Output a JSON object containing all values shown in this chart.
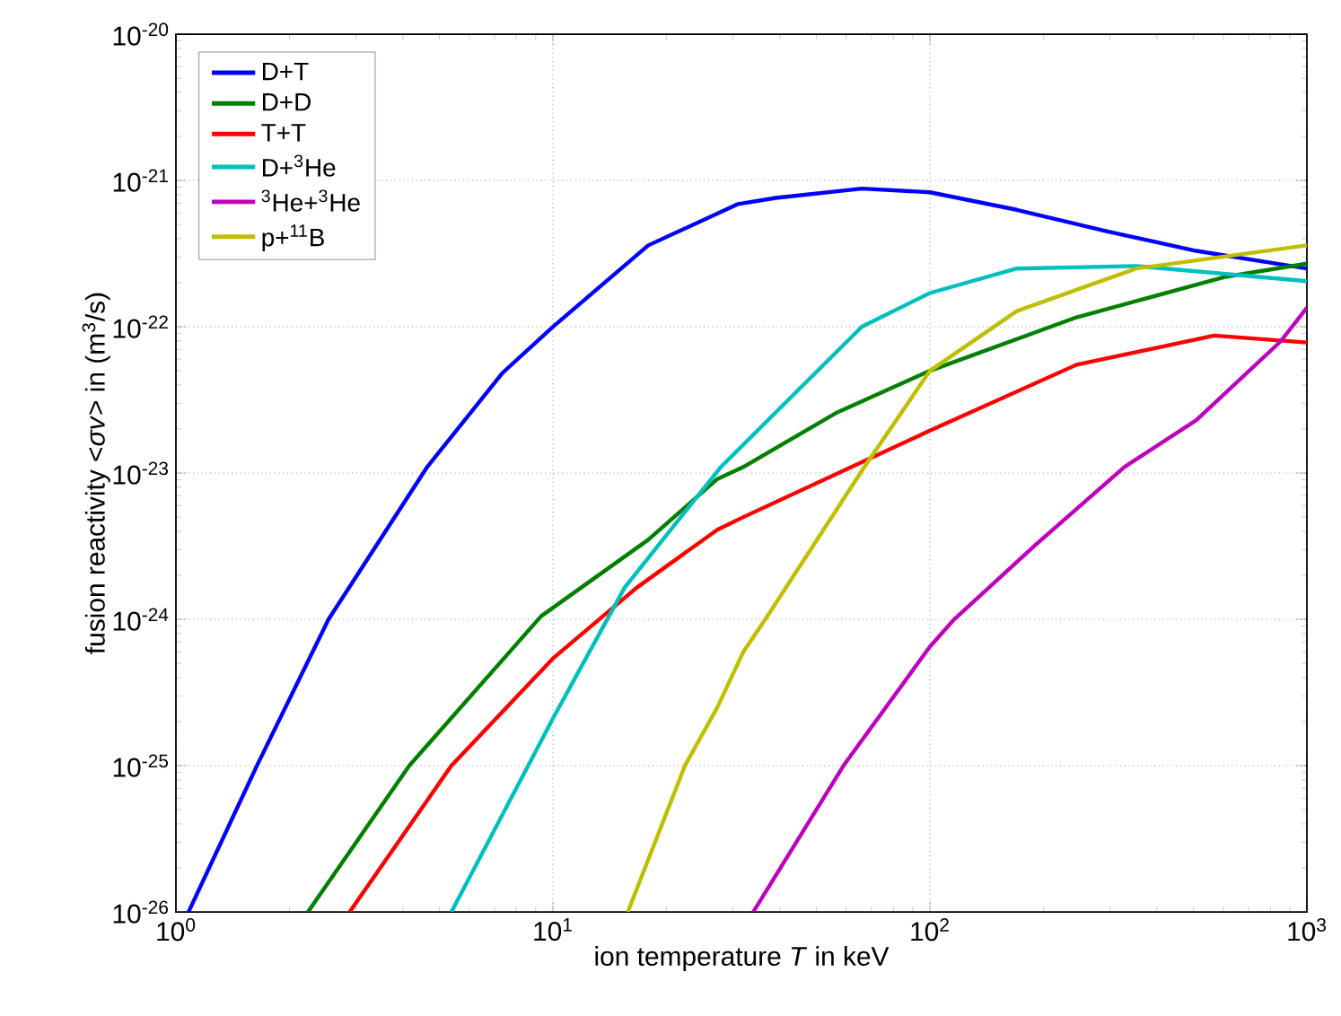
{
  "chart_data": {
    "type": "line",
    "xlabel": "ion temperature *T* in keV",
    "ylabel": "fusion reactivity <*σv*> in (m$^{3}$/s)",
    "log": "xy",
    "grid": true,
    "legend": "top left",
    "line_style": "solid",
    "xlim": [
      1,
      1000
    ],
    "ylim": [
      1e-26,
      1e-20
    ],
    "xticks": [
      {
        "value": 1,
        "label": "10$^{0}$"
      },
      {
        "value": 10,
        "label": "10$^{1}$"
      },
      {
        "value": 100,
        "label": "10$^{2}$"
      },
      {
        "value": 1000,
        "label": "10$^{3}$"
      }
    ],
    "yticks": [
      {
        "value": 1e-26,
        "label": "10$^{-26}$"
      },
      {
        "value": 1e-25,
        "label": "10$^{-25}$"
      },
      {
        "value": 1e-24,
        "label": "10$^{-24}$"
      },
      {
        "value": 1e-23,
        "label": "10$^{-23}$"
      },
      {
        "value": 1e-22,
        "label": "10$^{-22}$"
      },
      {
        "value": 1e-21,
        "label": "10$^{-21}$"
      },
      {
        "value": 1e-20,
        "label": "10$^{-20}$"
      }
    ],
    "series": [
      {
        "name": "D+T",
        "color": "#0000ff",
        "x": [
          1.08,
          1.64,
          2.54,
          4.64,
          7.33,
          10,
          17.9,
          31,
          39,
          66,
          100,
          170,
          294,
          509,
          1000
        ],
        "values": [
          1e-26,
          1e-25,
          1e-24,
          1.1e-23,
          4.8e-23,
          1e-22,
          3.6e-22,
          6.9e-22,
          7.6e-22,
          8.8e-22,
          8.3e-22,
          6.3e-22,
          4.5e-22,
          3.3e-22,
          2.5e-22
        ]
      },
      {
        "name": "D+D",
        "color": "#008000",
        "x": [
          2.24,
          4.16,
          9.3,
          17.9,
          27.3,
          32,
          56.8,
          100,
          245,
          611,
          1000
        ],
        "values": [
          1e-26,
          1e-25,
          1.05e-24,
          3.5e-24,
          9.1e-24,
          1.1e-23,
          2.6e-23,
          5e-23,
          1.16e-22,
          2.2e-22,
          2.7e-22
        ]
      },
      {
        "name": "T+T",
        "color": "#ff0000",
        "x": [
          2.89,
          5.38,
          10,
          16.7,
          27.3,
          32,
          100,
          245,
          568,
          1000
        ],
        "values": [
          1e-26,
          1e-25,
          5.4e-25,
          1.65e-24,
          4.1e-24,
          5e-24,
          1.95e-23,
          5.5e-23,
          8.7e-23,
          7.8e-23
        ]
      },
      {
        "name": "D+$^{3}$He",
        "color": "#00bfbf",
        "x": [
          5.38,
          10,
          15.5,
          27.9,
          66,
          100,
          170,
          353,
          1000
        ],
        "values": [
          1e-26,
          2.1e-25,
          1.65e-24,
          1.1e-23,
          1e-22,
          1.7e-22,
          2.5e-22,
          2.6e-22,
          2.05e-22
        ]
      },
      {
        "name": "$^{3}$He+$^{3}$He",
        "color": "#bf00bf",
        "x": [
          34,
          59,
          100,
          116,
          190,
          328,
          509,
          850,
          1000
        ],
        "values": [
          1e-26,
          1e-25,
          6.5e-25,
          1e-24,
          3.2e-24,
          1.1e-23,
          2.3e-23,
          7.9e-23,
          1.35e-22
        ]
      },
      {
        "name": "p+$^{11}$B",
        "color": "#bfbf00",
        "x": [
          15.8,
          22.4,
          27.3,
          32,
          36.6,
          67,
          100,
          170,
          353,
          1000
        ],
        "values": [
          1e-26,
          1e-25,
          2.5e-25,
          6e-25,
          1e-24,
          1.1e-23,
          5e-23,
          1.28e-22,
          2.5e-22,
          3.6e-22
        ]
      }
    ]
  }
}
